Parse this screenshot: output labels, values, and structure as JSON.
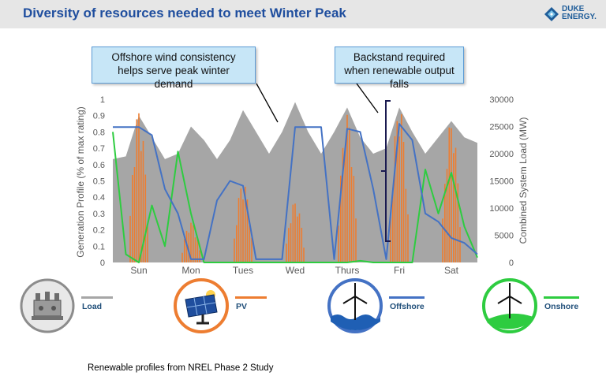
{
  "header": {
    "title": "Diversity of resources needed to meet Winter Peak"
  },
  "logo": {
    "line1": "DUKE",
    "line2": "ENERGY."
  },
  "callouts": {
    "wind": "Offshore wind consistency helps serve peak winter demand",
    "backstand": "Backstand required when renewable output falls"
  },
  "legend": {
    "load": "Load",
    "pv": "PV",
    "offshore": "Offshore",
    "onshore": "Onshore"
  },
  "footnote": "Renewable profiles from NREL Phase 2 Study",
  "colors": {
    "load": "#a6a6a6",
    "pv": "#ed7d31",
    "offshore": "#4472c4",
    "onshore": "#2ecc40",
    "header_title": "#1f4e9e"
  },
  "chart_data": {
    "type": "line",
    "ylabel": "Generation Profile (% of max rating)",
    "y2label": "Combined System Load (MW)",
    "ylim": [
      0,
      1
    ],
    "y2lim": [
      0,
      30000
    ],
    "yticks": [
      "0",
      "0.1",
      "0.2",
      "0.3",
      "0.4",
      "0.5",
      "0.6",
      "0.7",
      "0.8",
      "0.9",
      "1"
    ],
    "y2ticks": [
      "0",
      "5000",
      "10000",
      "15000",
      "20000",
      "25000",
      "30000"
    ],
    "categories": [
      "Sun",
      "Mon",
      "Tues",
      "Wed",
      "Thurs",
      "Fri",
      "Sat"
    ],
    "x": [
      0,
      6,
      12,
      18,
      24,
      30,
      36,
      42,
      48,
      54,
      60,
      66,
      72,
      78,
      84,
      90,
      96,
      102,
      108,
      114,
      120,
      126,
      132,
      138,
      144,
      150,
      156,
      162,
      168
    ],
    "series": [
      {
        "name": "Load",
        "kind": "area",
        "axis": "right",
        "values": [
          19000,
          19500,
          27000,
          23000,
          19000,
          20000,
          25000,
          22500,
          19000,
          22500,
          28000,
          24000,
          20000,
          24000,
          29500,
          24000,
          20000,
          24000,
          28500,
          23000,
          20000,
          21000,
          28500,
          24000,
          20000,
          23000,
          26000,
          23000,
          22000
        ]
      },
      {
        "name": "Offshore",
        "kind": "line",
        "axis": "left",
        "values": [
          0.83,
          0.83,
          0.83,
          0.78,
          0.45,
          0.3,
          0.02,
          0.02,
          0.38,
          0.5,
          0.47,
          0.02,
          0.02,
          0.02,
          0.83,
          0.83,
          0.83,
          0.02,
          0.82,
          0.8,
          0.45,
          0.02,
          0.85,
          0.75,
          0.3,
          0.25,
          0.15,
          0.12,
          0.05
        ]
      },
      {
        "name": "Onshore",
        "kind": "line",
        "axis": "left",
        "values": [
          0.8,
          0.05,
          0.0,
          0.35,
          0.1,
          0.68,
          0.3,
          0.0,
          0.0,
          0.0,
          0.0,
          0.0,
          0.0,
          0.0,
          0.0,
          0.0,
          0.0,
          0.0,
          0.0,
          0.01,
          0.0,
          0.0,
          0.0,
          0.0,
          0.57,
          0.3,
          0.55,
          0.22,
          0.03
        ]
      },
      {
        "name": "PV",
        "kind": "spikes",
        "axis": "left",
        "values": [
          0.95,
          0.25,
          0.5,
          0.38,
          0.92,
          0.97,
          0.88
        ]
      }
    ]
  }
}
